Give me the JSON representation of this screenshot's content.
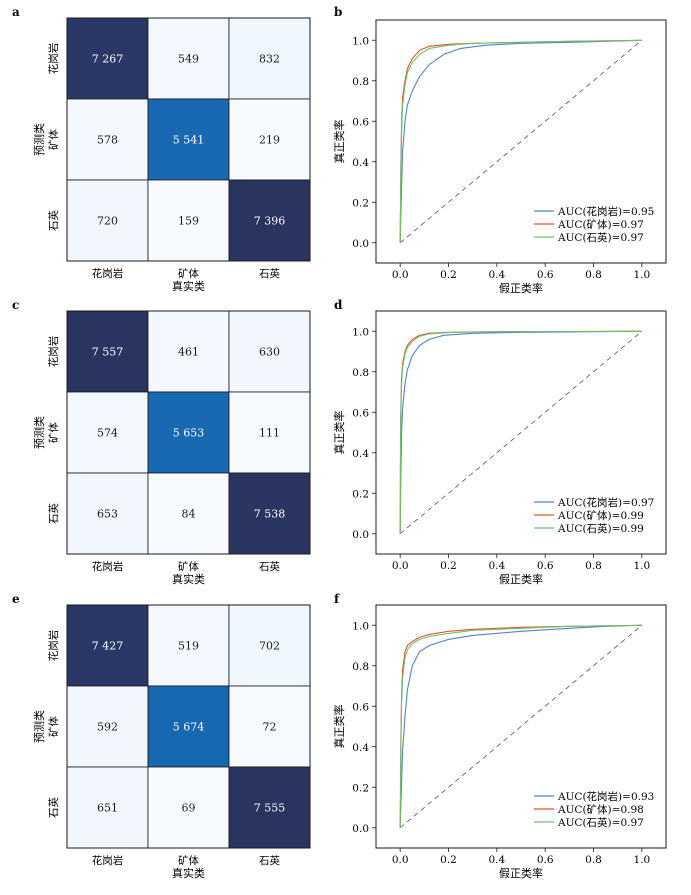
{
  "colors": {
    "granite": "#4f86c6",
    "ore": "#e8542c",
    "quartz": "#6cc36c",
    "cm_low": "#f7fbff",
    "cm_mid": "#1571c0",
    "cm_high": "#2a3461"
  },
  "chart_data": [
    {
      "type": "heatmap",
      "panel": "a",
      "xlabel": "真实类",
      "ylabel": "预测类",
      "x_ticks": [
        "花岗岩",
        "矿体",
        "石英"
      ],
      "y_ticks": [
        "花岗岩",
        "矿体",
        "石英"
      ],
      "matrix": [
        [
          7267,
          549,
          832
        ],
        [
          578,
          5541,
          219
        ],
        [
          720,
          159,
          7396
        ]
      ],
      "matrix_text": [
        [
          "7 267",
          "549",
          "832"
        ],
        [
          "578",
          "5 541",
          "219"
        ],
        [
          "720",
          "159",
          "7 396"
        ]
      ]
    },
    {
      "type": "line",
      "panel": "b",
      "xlabel": "假正类率",
      "ylabel": "真正类率",
      "xlim": [
        0,
        1
      ],
      "ylim": [
        0,
        1
      ],
      "x_ticks": [
        "0.0",
        "0.2",
        "0.4",
        "0.6",
        "0.8",
        "1.0"
      ],
      "y_ticks": [
        "0.0",
        "0.2",
        "0.4",
        "0.6",
        "0.8",
        "1.0"
      ],
      "legend_position": "bottom-right",
      "series": [
        {
          "name": "AUC(花岗岩)=0.95",
          "auc": 0.95,
          "x": [
            0,
            0.005,
            0.01,
            0.02,
            0.03,
            0.05,
            0.08,
            0.12,
            0.18,
            0.25,
            0.35,
            0.5,
            0.7,
            0.85,
            1
          ],
          "y": [
            0,
            0.25,
            0.45,
            0.6,
            0.68,
            0.75,
            0.82,
            0.88,
            0.93,
            0.96,
            0.975,
            0.985,
            0.99,
            0.995,
            1
          ]
        },
        {
          "name": "AUC(矿体)=0.97",
          "auc": 0.97,
          "x": [
            0,
            0.003,
            0.006,
            0.01,
            0.02,
            0.03,
            0.05,
            0.08,
            0.12,
            0.2,
            0.3,
            0.5,
            0.7,
            1
          ],
          "y": [
            0,
            0.4,
            0.6,
            0.72,
            0.8,
            0.86,
            0.91,
            0.95,
            0.97,
            0.98,
            0.985,
            0.99,
            0.995,
            1
          ]
        },
        {
          "name": "AUC(石英)=0.97",
          "auc": 0.97,
          "x": [
            0,
            0.003,
            0.006,
            0.01,
            0.02,
            0.03,
            0.05,
            0.08,
            0.12,
            0.2,
            0.3,
            0.5,
            0.7,
            1
          ],
          "y": [
            0,
            0.35,
            0.55,
            0.68,
            0.78,
            0.84,
            0.89,
            0.93,
            0.96,
            0.975,
            0.985,
            0.99,
            0.995,
            1
          ]
        }
      ]
    },
    {
      "type": "heatmap",
      "panel": "c",
      "xlabel": "真实类",
      "ylabel": "预测类",
      "x_ticks": [
        "花岗岩",
        "矿体",
        "石英"
      ],
      "y_ticks": [
        "花岗岩",
        "矿体",
        "石英"
      ],
      "matrix": [
        [
          7557,
          461,
          630
        ],
        [
          574,
          5653,
          111
        ],
        [
          653,
          84,
          7538
        ]
      ],
      "matrix_text": [
        [
          "7 557",
          "461",
          "630"
        ],
        [
          "574",
          "5 653",
          "111"
        ],
        [
          "653",
          "84",
          "7 538"
        ]
      ]
    },
    {
      "type": "line",
      "panel": "d",
      "xlabel": "假正类率",
      "ylabel": "真正类率",
      "xlim": [
        0,
        1
      ],
      "ylim": [
        0,
        1
      ],
      "x_ticks": [
        "0.0",
        "0.2",
        "0.4",
        "0.6",
        "0.8",
        "1.0"
      ],
      "y_ticks": [
        "0.0",
        "0.2",
        "0.4",
        "0.6",
        "0.8",
        "1.0"
      ],
      "legend_position": "bottom-right",
      "series": [
        {
          "name": "AUC(花岗岩)=0.97",
          "auc": 0.97,
          "x": [
            0,
            0.003,
            0.006,
            0.01,
            0.02,
            0.03,
            0.05,
            0.08,
            0.12,
            0.18,
            0.3,
            0.5,
            0.7,
            1
          ],
          "y": [
            0,
            0.3,
            0.5,
            0.62,
            0.74,
            0.81,
            0.88,
            0.93,
            0.96,
            0.98,
            0.99,
            0.995,
            0.997,
            1
          ]
        },
        {
          "name": "AUC(矿体)=0.99",
          "auc": 0.99,
          "x": [
            0,
            0.002,
            0.005,
            0.01,
            0.02,
            0.03,
            0.05,
            0.08,
            0.12,
            0.2,
            0.4,
            0.7,
            1
          ],
          "y": [
            0,
            0.55,
            0.75,
            0.84,
            0.9,
            0.93,
            0.96,
            0.98,
            0.99,
            0.995,
            0.998,
            0.999,
            1
          ]
        },
        {
          "name": "AUC(石英)=0.99",
          "auc": 0.99,
          "x": [
            0,
            0.002,
            0.005,
            0.01,
            0.02,
            0.03,
            0.05,
            0.08,
            0.12,
            0.2,
            0.4,
            0.7,
            1
          ],
          "y": [
            0,
            0.5,
            0.72,
            0.82,
            0.89,
            0.92,
            0.95,
            0.975,
            0.987,
            0.994,
            0.998,
            0.999,
            1
          ]
        }
      ]
    },
    {
      "type": "heatmap",
      "panel": "e",
      "xlabel": "真实类",
      "ylabel": "预测类",
      "x_ticks": [
        "花岗岩",
        "矿体",
        "石英"
      ],
      "y_ticks": [
        "花岗岩",
        "矿体",
        "石英"
      ],
      "matrix": [
        [
          7427,
          519,
          702
        ],
        [
          592,
          5674,
          72
        ],
        [
          651,
          69,
          7555
        ]
      ],
      "matrix_text": [
        [
          "7 427",
          "519",
          "702"
        ],
        [
          "592",
          "5 674",
          "72"
        ],
        [
          "651",
          "69",
          "7 555"
        ]
      ]
    },
    {
      "type": "line",
      "panel": "f",
      "xlabel": "假正类率",
      "ylabel": "真正类率",
      "xlim": [
        0,
        1
      ],
      "ylim": [
        0,
        1
      ],
      "x_ticks": [
        "0.0",
        "0.2",
        "0.4",
        "0.6",
        "0.8",
        "1.0"
      ],
      "y_ticks": [
        "0.0",
        "0.2",
        "0.4",
        "0.6",
        "0.8",
        "1.0"
      ],
      "legend_position": "bottom-right",
      "series": [
        {
          "name": "AUC(花岗岩)=0.93",
          "auc": 0.93,
          "x": [
            0,
            0.005,
            0.01,
            0.02,
            0.03,
            0.05,
            0.08,
            0.12,
            0.2,
            0.3,
            0.5,
            0.7,
            0.85,
            1
          ],
          "y": [
            0,
            0.2,
            0.38,
            0.55,
            0.68,
            0.8,
            0.87,
            0.9,
            0.93,
            0.95,
            0.97,
            0.985,
            0.995,
            1
          ]
        },
        {
          "name": "AUC(矿体)=0.98",
          "auc": 0.98,
          "x": [
            0,
            0.003,
            0.006,
            0.01,
            0.02,
            0.03,
            0.05,
            0.08,
            0.12,
            0.2,
            0.3,
            0.5,
            0.7,
            1
          ],
          "y": [
            0,
            0.45,
            0.66,
            0.78,
            0.87,
            0.9,
            0.92,
            0.94,
            0.955,
            0.97,
            0.98,
            0.99,
            0.995,
            1
          ]
        },
        {
          "name": "AUC(石英)=0.97",
          "auc": 0.97,
          "x": [
            0,
            0.003,
            0.006,
            0.01,
            0.02,
            0.03,
            0.05,
            0.08,
            0.12,
            0.2,
            0.3,
            0.5,
            0.7,
            1
          ],
          "y": [
            0,
            0.4,
            0.62,
            0.74,
            0.84,
            0.88,
            0.91,
            0.93,
            0.945,
            0.96,
            0.975,
            0.985,
            0.995,
            1
          ]
        }
      ]
    }
  ]
}
